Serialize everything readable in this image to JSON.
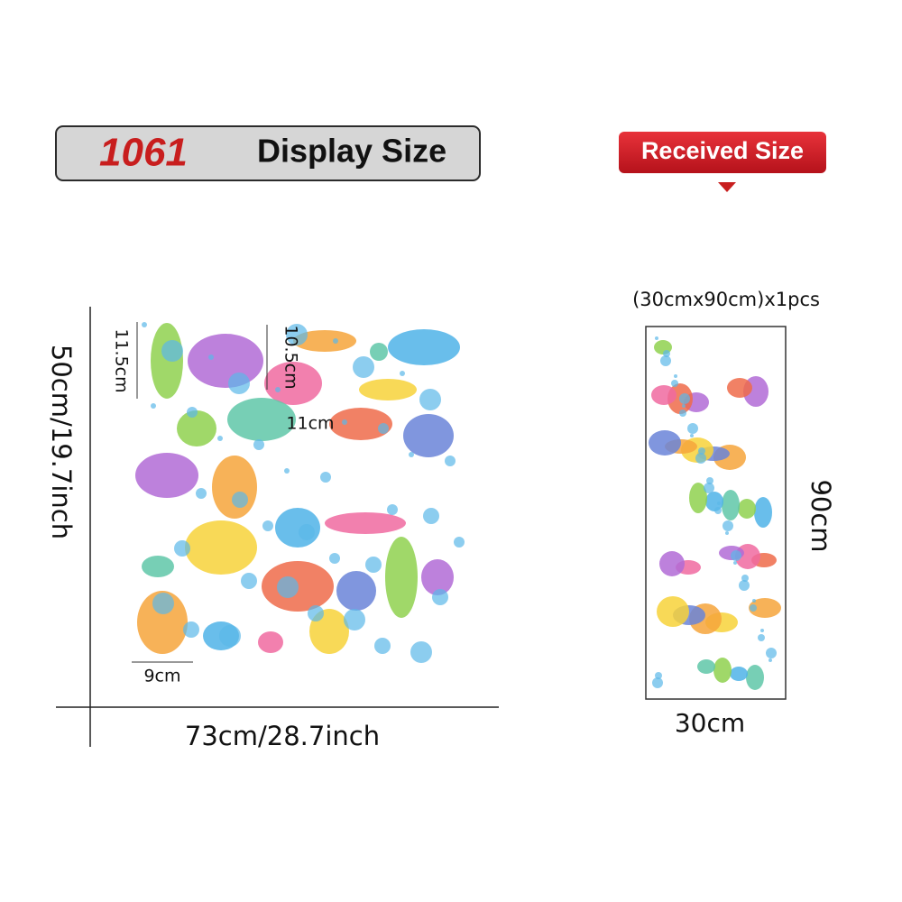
{
  "header": {
    "code": "1061",
    "title": "Display Size",
    "badge": "Received Size"
  },
  "display": {
    "height": "50cm/19.7inch",
    "width": "73cm/28.7inch",
    "measures": [
      "11.5cm",
      "10.5cm",
      "11cm",
      "9cm"
    ]
  },
  "received": {
    "spec": "(30cmx90cm)x1pcs",
    "height": "90cm",
    "width": "30cm"
  }
}
